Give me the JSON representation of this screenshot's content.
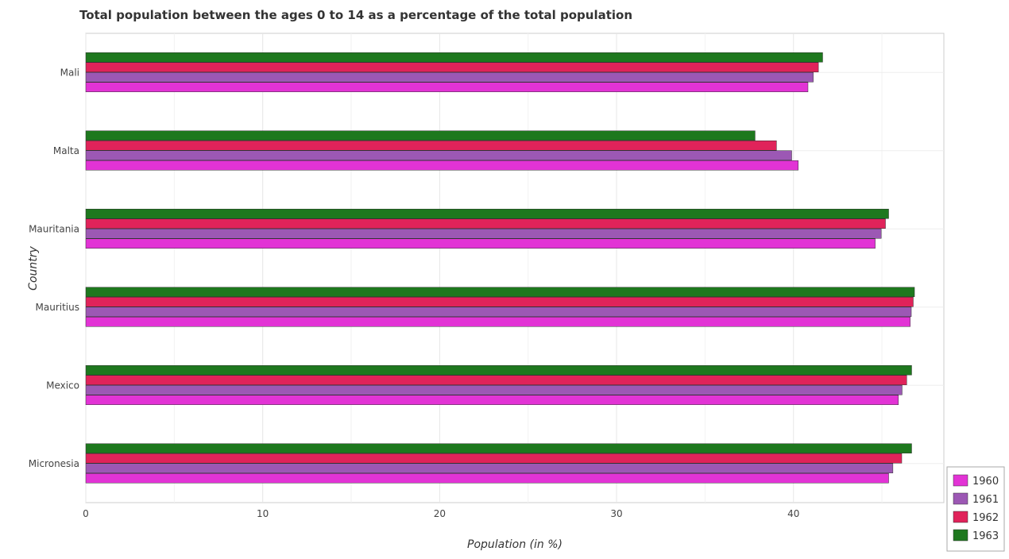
{
  "chart_data": {
    "type": "bar",
    "orientation": "horizontal",
    "title": "Total population between the ages 0 to 14 as a percentage of the total population",
    "xlabel": "Population (in %)",
    "ylabel": "Country",
    "xlim": [
      0,
      48.5
    ],
    "xticks": [
      0,
      10,
      20,
      30,
      40
    ],
    "grid": true,
    "legend_position": "bottom-right",
    "categories": [
      "Mali",
      "Malta",
      "Mauritania",
      "Mauritius",
      "Mexico",
      "Micronesia"
    ],
    "series": [
      {
        "name": "1960",
        "color": "#e233d5",
        "values": [
          40.82,
          40.27,
          44.62,
          46.6,
          45.93,
          45.38
        ]
      },
      {
        "name": "1961",
        "color": "#9c58b4",
        "values": [
          41.12,
          39.9,
          44.96,
          46.66,
          46.14,
          45.62
        ]
      },
      {
        "name": "1962",
        "color": "#e0235a",
        "values": [
          41.41,
          39.04,
          45.2,
          46.77,
          46.4,
          46.12
        ]
      },
      {
        "name": "1963",
        "color": "#1e781e",
        "values": [
          41.65,
          37.83,
          45.38,
          46.84,
          46.68,
          46.68
        ]
      }
    ]
  }
}
